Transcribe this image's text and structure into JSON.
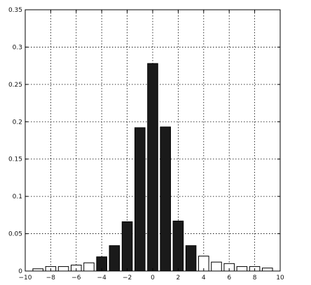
{
  "chart_data": {
    "type": "bar",
    "title": "",
    "xlabel": "",
    "ylabel": "",
    "xlim": [
      -10,
      10
    ],
    "ylim": [
      0,
      0.35
    ],
    "grid": true,
    "x_ticks": [
      "−10",
      "−8",
      "−6",
      "−4",
      "−2",
      "0",
      "2",
      "4",
      "6",
      "8",
      "10"
    ],
    "x_tick_values": [
      -10,
      -8,
      -6,
      -4,
      -2,
      0,
      2,
      4,
      6,
      8,
      10
    ],
    "y_ticks": [
      "0",
      "0.05",
      "0.1",
      "0.15",
      "0.2",
      "0.25",
      "0.3",
      "0.35"
    ],
    "y_tick_values": [
      0,
      0.05,
      0.1,
      0.15,
      0.2,
      0.25,
      0.3,
      0.35
    ],
    "x": [
      -9,
      -8,
      -7,
      -6,
      -5,
      -4,
      -3,
      -2,
      -1,
      0,
      1,
      2,
      3,
      4,
      5,
      6,
      7,
      8,
      9
    ],
    "values": [
      0.003,
      0.006,
      0.006,
      0.008,
      0.011,
      0.019,
      0.034,
      0.066,
      0.192,
      0.278,
      0.193,
      0.067,
      0.034,
      0.02,
      0.012,
      0.01,
      0.006,
      0.006,
      0.004
    ],
    "fill": [
      "white",
      "white",
      "white",
      "white",
      "white",
      "black",
      "black",
      "black",
      "black",
      "black",
      "black",
      "black",
      "black",
      "white",
      "white",
      "white",
      "white",
      "white",
      "white"
    ],
    "colors": {
      "black": "#1a1a1a",
      "white": "#ffffff"
    }
  }
}
